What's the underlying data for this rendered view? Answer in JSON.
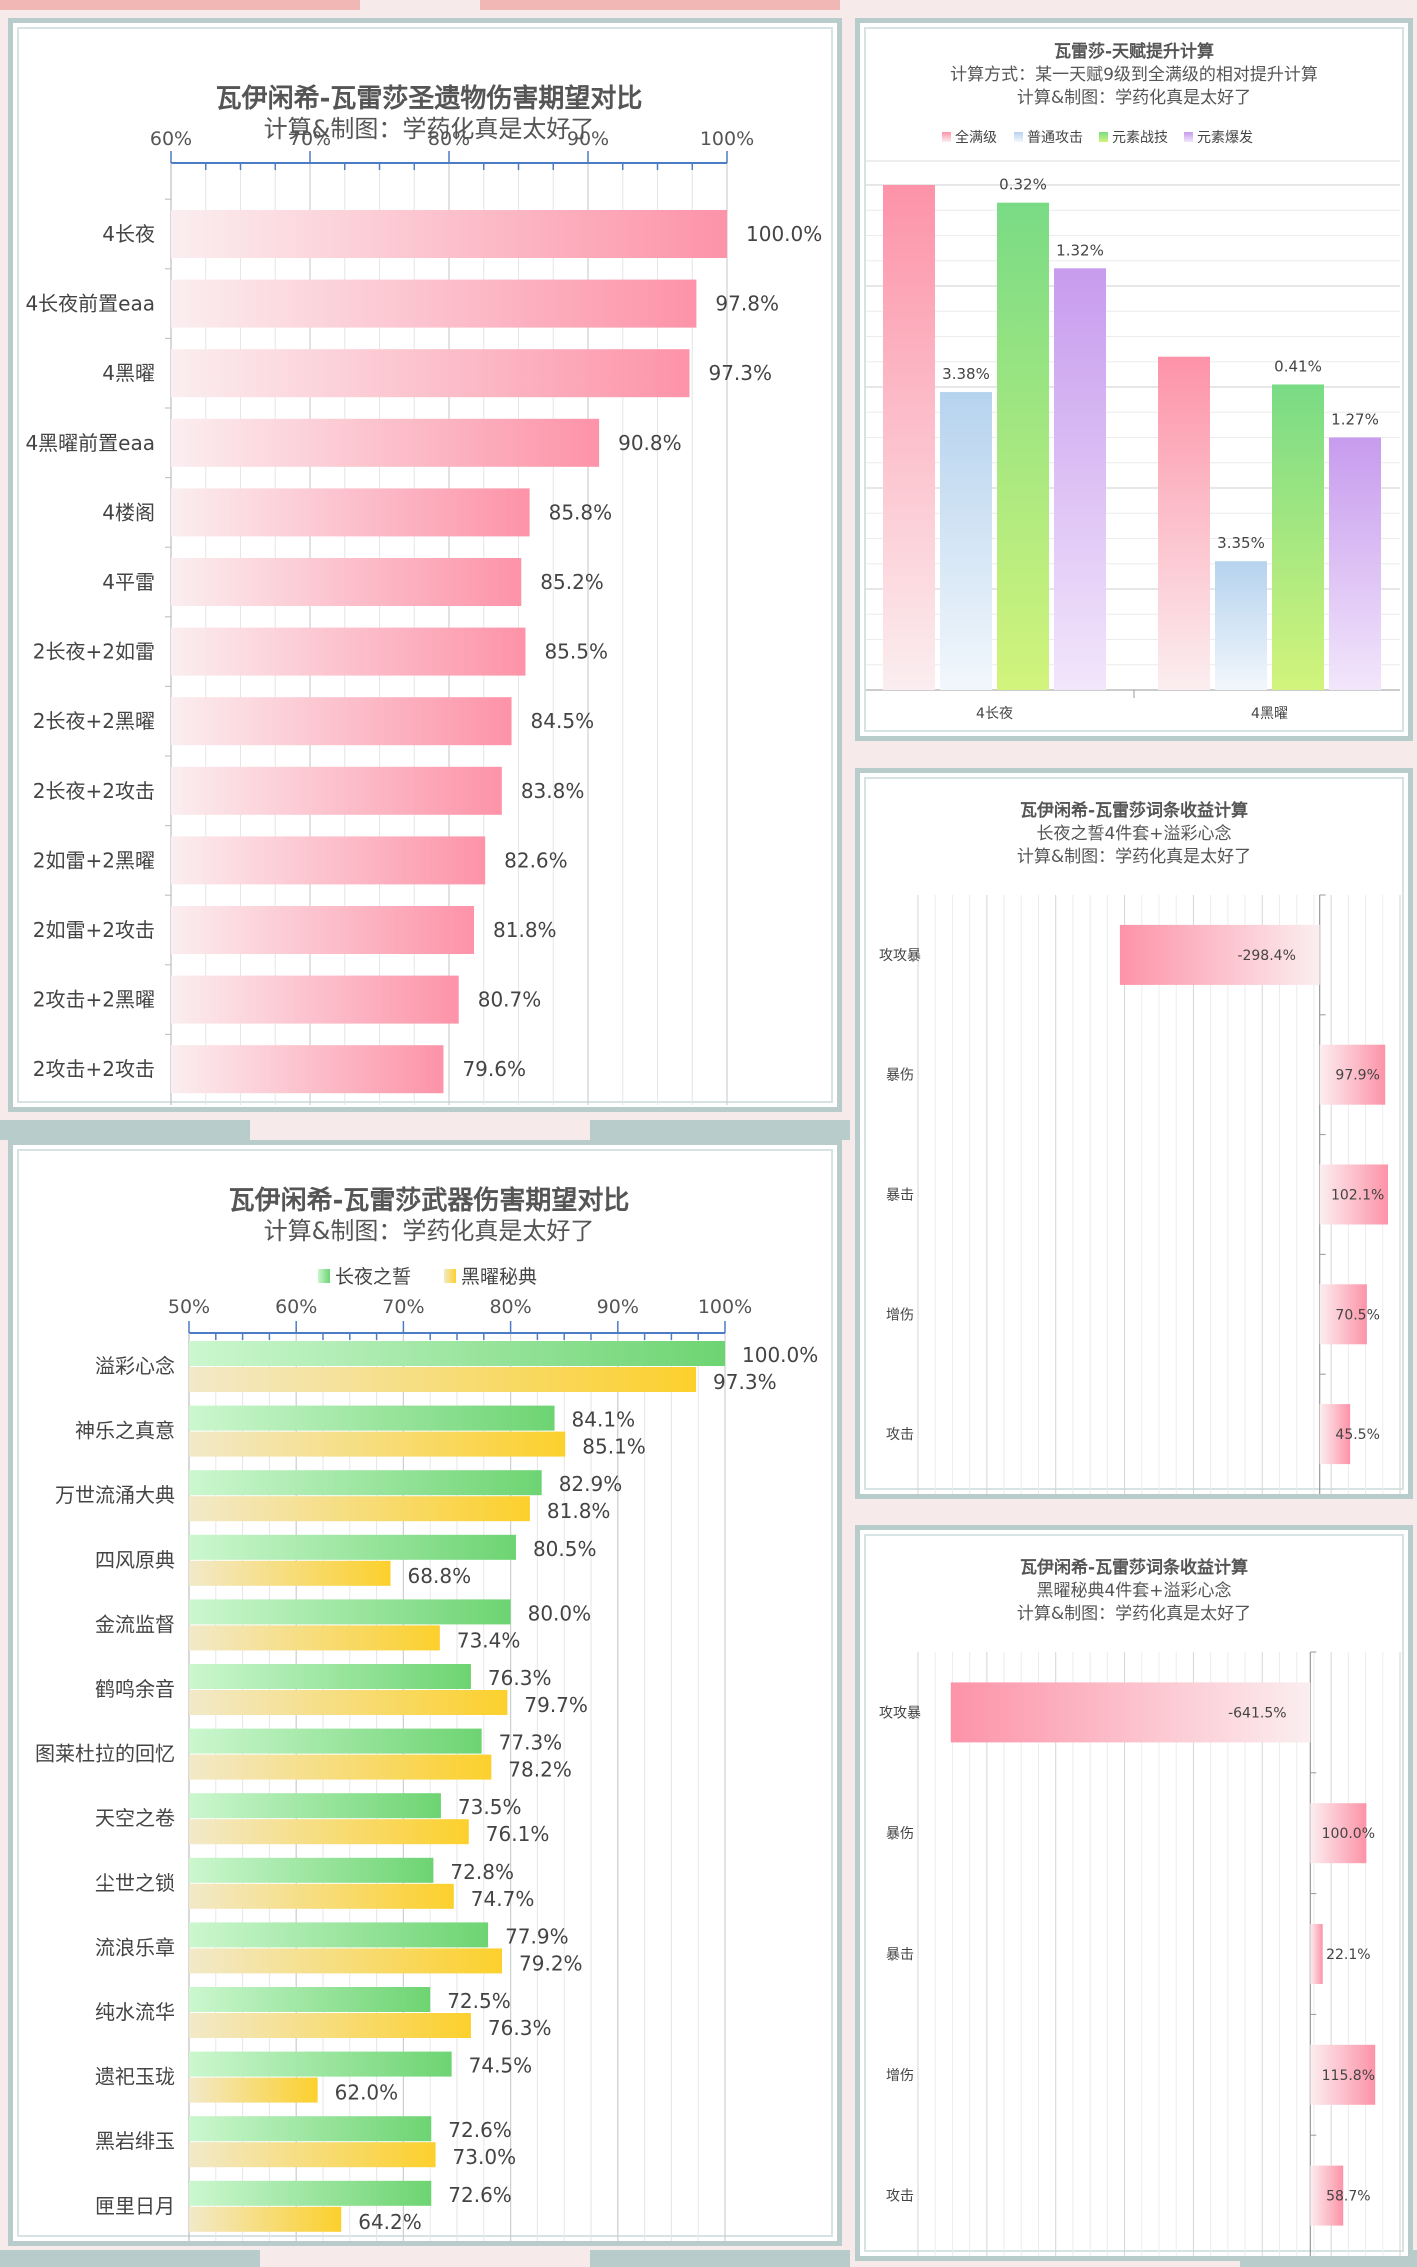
{
  "colors": {
    "pink_from": "#fbeef0",
    "pink_to": "#fd93a8",
    "blue": "#b6d3ee",
    "green": "#79db85",
    "yellow_green": "#d2f47c",
    "purple": "#c79bee",
    "weapon_green_from": "#ccf7cf",
    "weapon_green_to": "#6dd472",
    "weapon_yellow_from": "#f2e9c9",
    "weapon_yellow_to": "#fcd02c",
    "panel_border": "#b7cccb",
    "axis_blue": "#4c7cc4"
  },
  "chart_data": [
    {
      "id": "artifact",
      "type": "bar",
      "orientation": "horizontal",
      "title": "瓦伊闲希-瓦雷莎圣遗物伤害期望对比",
      "subtitle": "计算&制图：学药化真是太好了",
      "xlim": [
        60,
        100
      ],
      "ticks": [
        "60%",
        "70%",
        "80%",
        "90%",
        "100%"
      ],
      "categories": [
        "4长夜",
        "4长夜前置eaa",
        "4黑曜",
        "4黑曜前置eaa",
        "4楼阁",
        "4平雷",
        "2长夜+2如雷",
        "2长夜+2黑曜",
        "2长夜+2攻击",
        "2如雷+2黑曜",
        "2如雷+2攻击",
        "2攻击+2黑曜",
        "2攻击+2攻击"
      ],
      "values": [
        100.0,
        97.8,
        97.3,
        90.8,
        85.8,
        85.2,
        85.5,
        84.5,
        83.8,
        82.6,
        81.8,
        80.7,
        79.6
      ],
      "labels": [
        "100.0%",
        "97.8%",
        "97.3%",
        "90.8%",
        "85.8%",
        "85.2%",
        "85.5%",
        "84.5%",
        "83.8%",
        "82.6%",
        "81.8%",
        "80.7%",
        "79.6%"
      ]
    },
    {
      "id": "weapon",
      "type": "bar",
      "orientation": "horizontal",
      "title": "瓦伊闲希-瓦雷莎武器伤害期望对比",
      "subtitle": "计算&制图：学药化真是太好了",
      "xlim": [
        50,
        100
      ],
      "ticks": [
        "50%",
        "60%",
        "70%",
        "80%",
        "90%",
        "100%"
      ],
      "categories": [
        "溢彩心念",
        "神乐之真意",
        "万世流涌大典",
        "四风原典",
        "金流监督",
        "鹤鸣余音",
        "图莱杜拉的回忆",
        "天空之卷",
        "尘世之锁",
        "流浪乐章",
        "纯水流华",
        "遗祀玉珑",
        "黑岩绯玉",
        "匣里日月"
      ],
      "series": [
        {
          "name": "长夜之誓",
          "values": [
            100.0,
            84.1,
            82.9,
            80.5,
            80.0,
            76.3,
            77.3,
            73.5,
            72.8,
            77.9,
            72.5,
            74.5,
            72.6,
            72.6
          ],
          "labels": [
            "100.0%",
            "84.1%",
            "82.9%",
            "80.5%",
            "80.0%",
            "76.3%",
            "77.3%",
            "73.5%",
            "72.8%",
            "77.9%",
            "72.5%",
            "74.5%",
            "72.6%",
            "72.6%"
          ]
        },
        {
          "name": "黑曜秘典",
          "values": [
            97.3,
            85.1,
            81.8,
            68.8,
            73.4,
            79.7,
            78.2,
            76.1,
            74.7,
            79.2,
            76.3,
            62.0,
            73.0,
            64.2
          ],
          "labels": [
            "97.3%",
            "85.1%",
            "81.8%",
            "68.8%",
            "73.4%",
            "79.7%",
            "78.2%",
            "76.1%",
            "74.7%",
            "79.2%",
            "76.3%",
            "62.0%",
            "73.0%",
            "64.2%"
          ]
        }
      ],
      "legend": "top"
    },
    {
      "id": "talent",
      "type": "bar",
      "orientation": "vertical",
      "title": "瓦雷莎-天赋提升计算",
      "subtitle": "计算方式：某一天赋9级到全满级的相对提升计算",
      "subtitle2": "计算&制图：学药化真是太好了",
      "categories": [
        "4长夜",
        "4黑曜"
      ],
      "series": [
        {
          "name": "全满级",
          "values": [
            100,
            66
          ],
          "labels": [
            "",
            ""
          ]
        },
        {
          "name": "普通攻击",
          "values": [
            59,
            25.5
          ],
          "labels": [
            "3.38%",
            "3.35%"
          ]
        },
        {
          "name": "元素战技",
          "values": [
            96.5,
            60.5
          ],
          "labels": [
            "0.32%",
            "0.41%"
          ]
        },
        {
          "name": "元素爆发",
          "values": [
            83.5,
            50
          ],
          "labels": [
            "1.32%",
            "1.27%"
          ]
        }
      ],
      "ylim": [
        0,
        100
      ],
      "legend": "top"
    },
    {
      "id": "substat_long",
      "type": "bar",
      "orientation": "horizontal",
      "title": "瓦伊闲希-瓦雷莎词条收益计算",
      "subtitle": "长夜之誓4件套+溢彩心念",
      "subtitle2": "计算&制图：学药化真是太好了",
      "categories": [
        "攻攻暴",
        "暴伤",
        "暴击",
        "增伤",
        "攻击"
      ],
      "values": [
        -298.4,
        97.9,
        102.1,
        70.5,
        45.5
      ],
      "labels": [
        "-298.4%",
        "97.9%",
        "102.1%",
        "70.5%",
        "45.5%"
      ],
      "xlim": [
        -600,
        120
      ]
    },
    {
      "id": "substat_obsidian",
      "type": "bar",
      "orientation": "horizontal",
      "title": "瓦伊闲希-瓦雷莎词条收益计算",
      "subtitle": "黑曜秘典4件套+溢彩心念",
      "subtitle2": "计算&制图：学药化真是太好了",
      "categories": [
        "攻攻暴",
        "暴伤",
        "暴击",
        "增伤",
        "攻击"
      ],
      "values": [
        -641.5,
        100.0,
        22.1,
        115.8,
        58.7
      ],
      "labels": [
        "-641.5%",
        "100.0%",
        "22.1%",
        "115.8%",
        "58.7%"
      ],
      "xlim": [
        -700,
        160
      ]
    }
  ]
}
